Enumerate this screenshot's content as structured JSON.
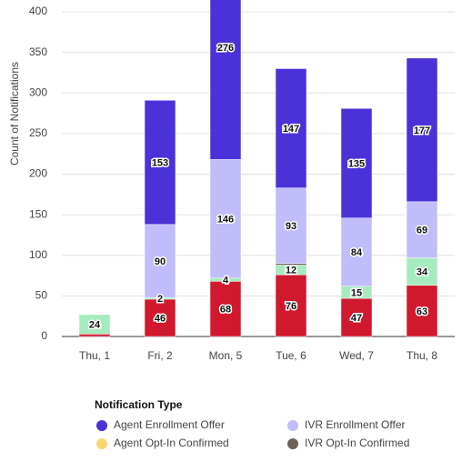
{
  "chart_data": {
    "type": "stacked_bar",
    "y_label": "Count of Notifications",
    "categories": [
      "Thu, 1",
      "Fri, 2",
      "Mon, 5",
      "Tue, 6",
      "Wed, 7",
      "Thu, 8"
    ],
    "series": [
      {
        "color": "#d0182f",
        "values": [
          3,
          46,
          68,
          76,
          47,
          63
        ],
        "value_labels": [
          null,
          "46",
          "68",
          "76",
          "47",
          "63"
        ]
      },
      {
        "color": "#a6ebbf",
        "values": [
          24,
          2,
          4,
          12,
          15,
          34
        ],
        "value_labels": [
          "24",
          "2",
          "4",
          "12",
          "15",
          "34"
        ]
      },
      {
        "name": "IVR Opt-In Confirmed",
        "color": "#6e6259",
        "values": [
          null,
          null,
          null,
          2,
          null,
          null
        ]
      },
      {
        "name": "Agent Opt-In Confirmed",
        "color": "#f7d774",
        "values": [
          null,
          null,
          null,
          null,
          null,
          null
        ]
      },
      {
        "name": "IVR Enrollment Offer",
        "color": "#c0bdfa",
        "values": [
          null,
          90,
          146,
          93,
          84,
          69
        ],
        "value_labels": [
          null,
          "90",
          "146",
          "93",
          "84",
          "69"
        ]
      },
      {
        "name": "Agent Enrollment Offer",
        "color": "#4b32d8",
        "values": [
          null,
          153,
          276,
          147,
          135,
          177
        ],
        "value_labels": [
          null,
          "153",
          "276",
          "147",
          "135",
          "177"
        ]
      }
    ],
    "legend_title": "Notification Type",
    "ylim": [
      0,
      400
    ],
    "yticks": [
      0,
      50,
      100,
      150,
      200,
      250,
      300,
      350,
      400
    ],
    "grid": true
  }
}
